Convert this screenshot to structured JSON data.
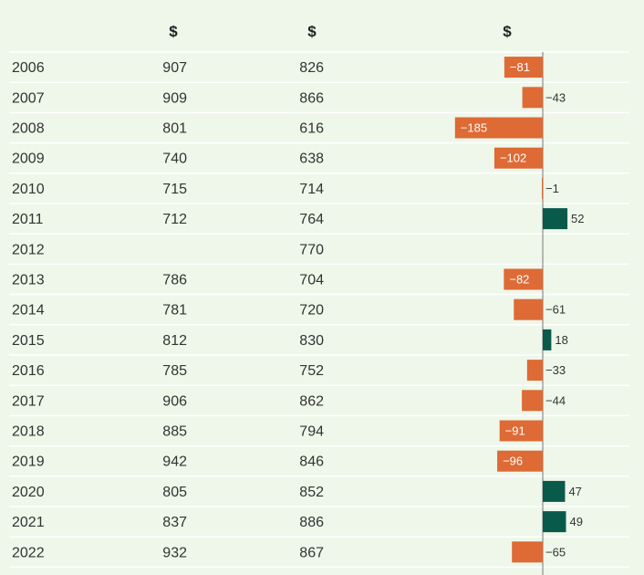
{
  "chart_data": {
    "type": "table",
    "columns": [
      "",
      "$",
      "$",
      "$"
    ],
    "rows": [
      {
        "year": "2006",
        "a": "907",
        "b": "826",
        "diff": -81
      },
      {
        "year": "2007",
        "a": "909",
        "b": "866",
        "diff": -43
      },
      {
        "year": "2008",
        "a": "801",
        "b": "616",
        "diff": -185
      },
      {
        "year": "2009",
        "a": "740",
        "b": "638",
        "diff": -102
      },
      {
        "year": "2010",
        "a": "715",
        "b": "714",
        "diff": -1
      },
      {
        "year": "2011",
        "a": "712",
        "b": "764",
        "diff": 52
      },
      {
        "year": "2012",
        "a": "",
        "b": "770",
        "diff": null
      },
      {
        "year": "2013",
        "a": "786",
        "b": "704",
        "diff": -82
      },
      {
        "year": "2014",
        "a": "781",
        "b": "720",
        "diff": -61
      },
      {
        "year": "2015",
        "a": "812",
        "b": "830",
        "diff": 18
      },
      {
        "year": "2016",
        "a": "785",
        "b": "752",
        "diff": -33
      },
      {
        "year": "2017",
        "a": "906",
        "b": "862",
        "diff": -44
      },
      {
        "year": "2018",
        "a": "885",
        "b": "794",
        "diff": -91
      },
      {
        "year": "2019",
        "a": "942",
        "b": "846",
        "diff": -96
      },
      {
        "year": "2020",
        "a": "805",
        "b": "852",
        "diff": 47
      },
      {
        "year": "2021",
        "a": "837",
        "b": "886",
        "diff": 49
      },
      {
        "year": "2022",
        "a": "932",
        "b": "867",
        "diff": -65
      }
    ],
    "colors": {
      "negative": "#de6a35",
      "positive": "#0a5a4c",
      "background": "#eef7ea"
    }
  }
}
